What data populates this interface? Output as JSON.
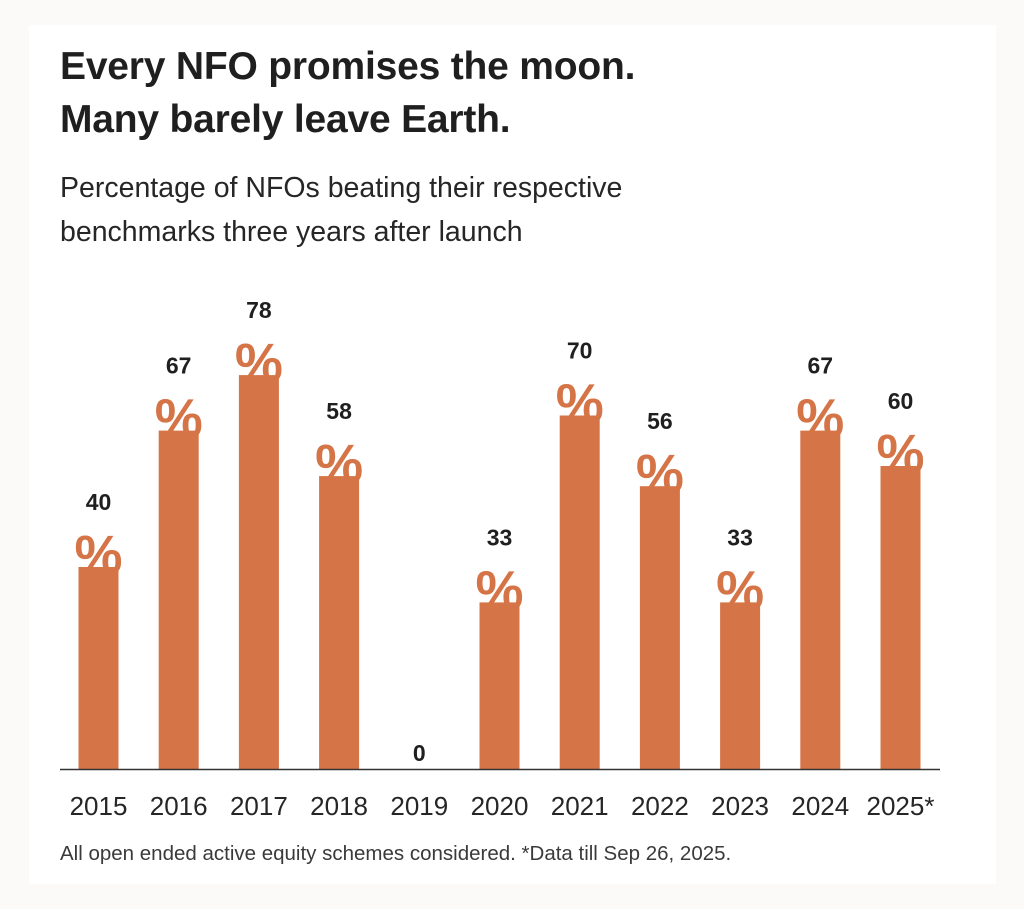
{
  "header": {
    "title_lines": [
      "Every NFO promises the moon.",
      "Many barely leave Earth."
    ],
    "subtitle_lines": [
      "Percentage of NFOs beating their respective",
      "benchmarks three years after launch"
    ]
  },
  "footnote": "All open ended active equity schemes considered. *Data till Sep 26, 2025.",
  "colors": {
    "bar": "#D57547",
    "text": "#1F1F1F",
    "axis": "#333333",
    "background": "#FBFAF8",
    "card": "#FFFFFF"
  },
  "chart_data": {
    "type": "bar",
    "title": "Every NFO promises the moon. Many barely leave Earth.",
    "subtitle": "Percentage of NFOs beating their respective benchmarks three years after launch",
    "xlabel": "",
    "ylabel": "",
    "categories": [
      "2015",
      "2016",
      "2017",
      "2018",
      "2019",
      "2020",
      "2021",
      "2022",
      "2023",
      "2024",
      "2025*"
    ],
    "values": [
      40,
      67,
      78,
      58,
      0,
      33,
      70,
      56,
      33,
      67,
      60
    ],
    "value_suffix": "%",
    "ylim": [
      0,
      100
    ],
    "grid": false,
    "legend": "none",
    "y_axis_visible": false,
    "annotation": "All open ended active equity schemes considered. *Data till Sep 26, 2025."
  }
}
